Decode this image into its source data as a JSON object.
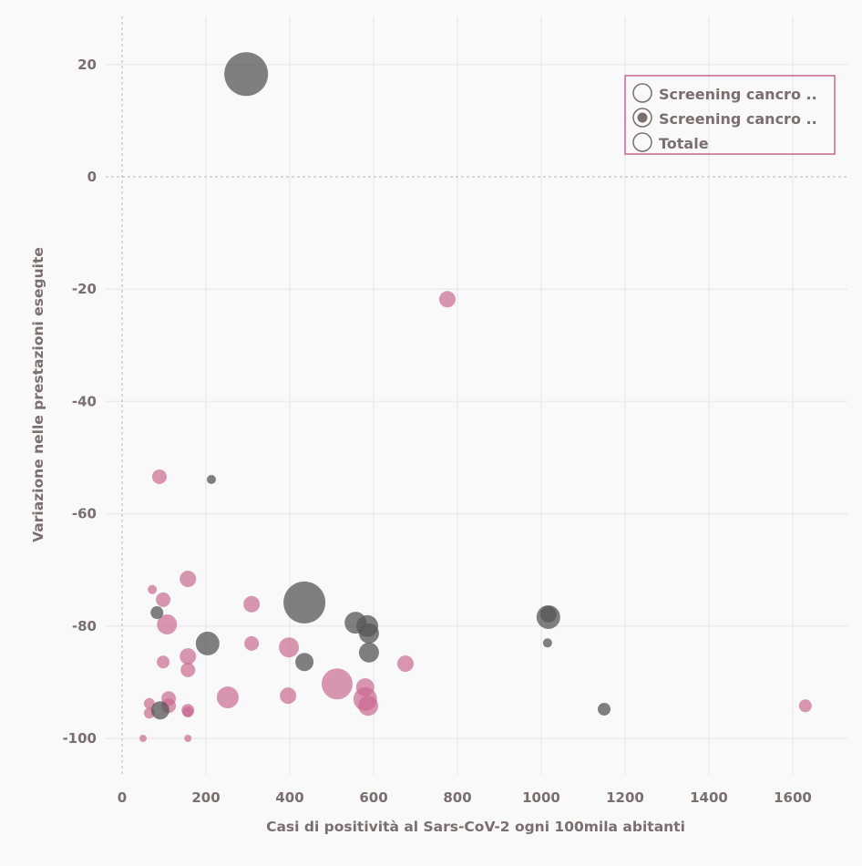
{
  "chart_data": {
    "type": "scatter",
    "xlabel": "Casi di positività al Sars-CoV-2 ogni 100mila abitanti",
    "ylabel": "Variazione nelle prestazioni eseguite",
    "xlim": [
      -40,
      1730
    ],
    "ylim": [
      -107,
      28
    ],
    "xticks": [
      0,
      200,
      400,
      600,
      800,
      1000,
      1200,
      1400,
      1600
    ],
    "yticks": [
      20,
      0,
      -20,
      -40,
      -60,
      -80,
      -100
    ],
    "grid": true,
    "legend": {
      "placement": "top-right",
      "entries": [
        {
          "label": "Screening cancro ..",
          "marker": "hollow"
        },
        {
          "label": "Screening cancro ..",
          "marker": "filled"
        },
        {
          "label": "Totale",
          "marker": "hollow"
        }
      ]
    },
    "series": [
      {
        "name": "Screening cancro .. (1)",
        "color": "#c9668e",
        "points": [
          [
            89,
            -53.4,
            8
          ],
          [
            776,
            -21.8,
            9
          ],
          [
            157,
            -71.6,
            9
          ],
          [
            72,
            -73.5,
            5
          ],
          [
            98,
            -75.3,
            8
          ],
          [
            107,
            -79.7,
            11
          ],
          [
            309,
            -76.1,
            9
          ],
          [
            309,
            -83.1,
            8
          ],
          [
            398,
            -83.8,
            11
          ],
          [
            98,
            -86.4,
            7
          ],
          [
            157,
            -85.4,
            9
          ],
          [
            157,
            -87.8,
            8
          ],
          [
            676,
            -86.7,
            9
          ],
          [
            513,
            -90.3,
            17
          ],
          [
            580,
            -90.9,
            10
          ],
          [
            580,
            -93,
            13
          ],
          [
            587,
            -94.2,
            11
          ],
          [
            252,
            -92.7,
            12
          ],
          [
            396,
            -92.4,
            9
          ],
          [
            111,
            -92.9,
            8
          ],
          [
            111,
            -94.2,
            8
          ],
          [
            65,
            -93.8,
            6
          ],
          [
            65,
            -95.5,
            6
          ],
          [
            157,
            -95,
            7
          ],
          [
            157,
            -95.3,
            6
          ],
          [
            50,
            -100,
            4
          ],
          [
            157,
            -100,
            4
          ],
          [
            1630,
            -94.2,
            7
          ]
        ]
      },
      {
        "name": "Screening cancro .. (2)",
        "color": "#555555",
        "points": [
          [
            296,
            18.3,
            24
          ],
          [
            213,
            -53.9,
            5
          ],
          [
            83,
            -77.6,
            7
          ],
          [
            435,
            -75.8,
            23
          ],
          [
            204,
            -83.1,
            13
          ],
          [
            435,
            -86.4,
            10
          ],
          [
            557,
            -79.4,
            12
          ],
          [
            585,
            -80,
            12
          ],
          [
            589,
            -81.3,
            11
          ],
          [
            589,
            -84.7,
            11
          ],
          [
            91,
            -95,
            10
          ],
          [
            1017,
            -78.4,
            13
          ],
          [
            1017,
            -77.9,
            9
          ],
          [
            1015,
            -83,
            5
          ],
          [
            1150,
            -94.8,
            7
          ]
        ]
      }
    ]
  }
}
